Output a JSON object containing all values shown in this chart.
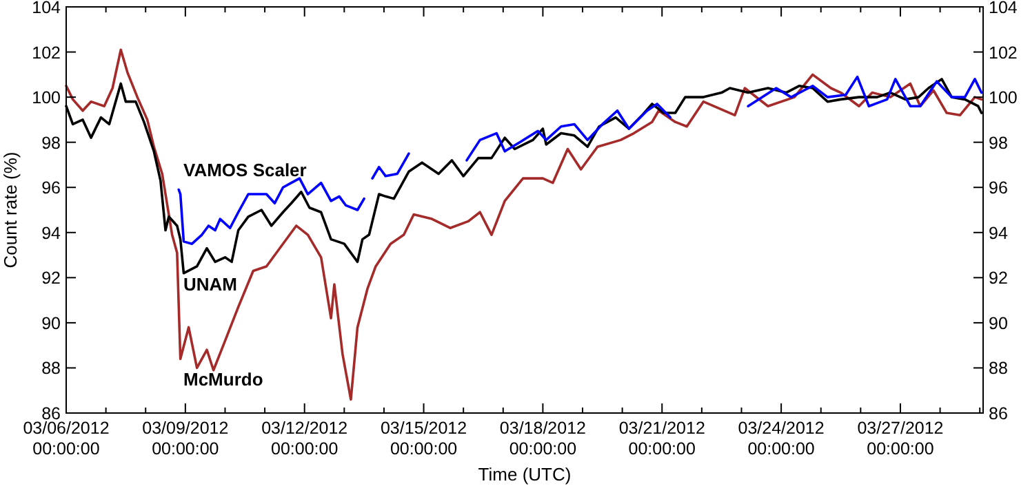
{
  "chart_data": {
    "type": "line",
    "xlabel": "Time (UTC)",
    "ylabel": "Count rate (%)",
    "xlim": [
      "2012-03-06T00:00",
      "2012-03-29T02:00"
    ],
    "xticks": [
      {
        "value": "2012-03-06",
        "label": "03/06/2012 00:00:00"
      },
      {
        "value": "2012-03-07",
        "label": null
      },
      {
        "value": "2012-03-08",
        "label": null
      },
      {
        "value": "2012-03-09",
        "label": "03/09/2012 00:00:00"
      },
      {
        "value": "2012-03-10",
        "label": null
      },
      {
        "value": "2012-03-11",
        "label": null
      },
      {
        "value": "2012-03-12",
        "label": "03/12/2012 00:00:00"
      },
      {
        "value": "2012-03-13",
        "label": null
      },
      {
        "value": "2012-03-14",
        "label": null
      },
      {
        "value": "2012-03-15",
        "label": "03/15/2012 00:00:00"
      },
      {
        "value": "2012-03-16",
        "label": null
      },
      {
        "value": "2012-03-17",
        "label": null
      },
      {
        "value": "2012-03-18",
        "label": "03/18/2012 00:00:00"
      },
      {
        "value": "2012-03-19",
        "label": null
      },
      {
        "value": "2012-03-20",
        "label": null
      },
      {
        "value": "2012-03-21",
        "label": "03/21/2012 00:00:00"
      },
      {
        "value": "2012-03-22",
        "label": null
      },
      {
        "value": "2012-03-23",
        "label": null
      },
      {
        "value": "2012-03-24",
        "label": "03/24/2012 00:00:00"
      },
      {
        "value": "2012-03-25",
        "label": null
      },
      {
        "value": "2012-03-26",
        "label": null
      },
      {
        "value": "2012-03-27",
        "label": "03/27/2012 00:00:00"
      },
      {
        "value": "2012-03-28",
        "label": null
      },
      {
        "value": "2012-03-29",
        "label": null
      }
    ],
    "ylim": [
      86,
      104
    ],
    "yticks": [
      86,
      88,
      90,
      92,
      94,
      96,
      98,
      100,
      102,
      104
    ],
    "y2lim": [
      86,
      104
    ],
    "y2ticks": [
      86,
      88,
      90,
      92,
      94,
      96,
      98,
      100,
      102,
      104
    ],
    "series": [
      {
        "name": "McMurdo",
        "color": "#a52a2a",
        "x": [
          "2012-03-06T00:00",
          "2012-03-06T04:00",
          "2012-03-06T10:00",
          "2012-03-06T15:00",
          "2012-03-06T23:00",
          "2012-03-07T04:00",
          "2012-03-07T09:00",
          "2012-03-07T13:00",
          "2012-03-07T19:00",
          "2012-03-08T01:00",
          "2012-03-08T05:00",
          "2012-03-08T10:00",
          "2012-03-08T16:00",
          "2012-03-08T19:00",
          "2012-03-08T21:00",
          "2012-03-09T02:00",
          "2012-03-09T07:00",
          "2012-03-09T13:00",
          "2012-03-09T17:00",
          "2012-03-10T00:00",
          "2012-03-10T08:00",
          "2012-03-10T17:00",
          "2012-03-11T01:00",
          "2012-03-11T09:00",
          "2012-03-11T19:00",
          "2012-03-12T02:00",
          "2012-03-12T10:00",
          "2012-03-12T16:00",
          "2012-03-12T18:00",
          "2012-03-12T23:00",
          "2012-03-13T04:00",
          "2012-03-13T08:00",
          "2012-03-13T14:00",
          "2012-03-13T19:00",
          "2012-03-14T04:00",
          "2012-03-14T12:00",
          "2012-03-14T18:00",
          "2012-03-15T05:00",
          "2012-03-15T16:00",
          "2012-03-16T03:00",
          "2012-03-16T10:00",
          "2012-03-16T17:00",
          "2012-03-17T01:00",
          "2012-03-17T12:00",
          "2012-03-18T00:00",
          "2012-03-18T06:00",
          "2012-03-18T15:00",
          "2012-03-18T23:00",
          "2012-03-19T09:00",
          "2012-03-19T23:00",
          "2012-03-20T07:00",
          "2012-03-20T18:00",
          "2012-03-20T22:00",
          "2012-03-21T08:00",
          "2012-03-21T15:00",
          "2012-03-22T01:00",
          "2012-03-22T20:00",
          "2012-03-23T02:00",
          "2012-03-23T16:00",
          "2012-03-24T08:00",
          "2012-03-24T19:00",
          "2012-03-25T06:00",
          "2012-03-25T12:00",
          "2012-03-25T23:00",
          "2012-03-26T07:00",
          "2012-03-26T18:00",
          "2012-03-27T06:00",
          "2012-03-27T12:00",
          "2012-03-27T20:00",
          "2012-03-28T04:00",
          "2012-03-28T12:00",
          "2012-03-28T21:00",
          "2012-03-29T01:00"
        ],
        "values": [
          100.5,
          99.9,
          99.4,
          99.8,
          99.6,
          100.4,
          102.1,
          101.1,
          100.0,
          99.0,
          97.8,
          96.6,
          93.9,
          93.1,
          88.4,
          89.8,
          88.0,
          88.8,
          87.9,
          89.2,
          90.7,
          92.3,
          92.5,
          93.3,
          94.3,
          93.9,
          92.9,
          90.2,
          91.7,
          88.6,
          86.6,
          89.8,
          91.5,
          92.5,
          93.5,
          93.9,
          94.8,
          94.6,
          94.2,
          94.5,
          94.9,
          93.9,
          95.4,
          96.4,
          96.4,
          96.2,
          97.7,
          96.8,
          97.8,
          98.1,
          98.4,
          98.9,
          99.4,
          98.9,
          98.7,
          99.8,
          99.2,
          100.4,
          99.6,
          100.0,
          101.0,
          100.4,
          100.2,
          99.6,
          100.2,
          100.0,
          100.6,
          99.6,
          100.3,
          99.3,
          99.2,
          100.0,
          99.9
        ]
      },
      {
        "name": "UNAM",
        "color": "#000000",
        "x": [
          "2012-03-06T00:00",
          "2012-03-06T04:00",
          "2012-03-06T10:00",
          "2012-03-06T15:00",
          "2012-03-06T21:00",
          "2012-03-07T02:00",
          "2012-03-07T09:00",
          "2012-03-07T12:00",
          "2012-03-07T18:00",
          "2012-03-07T23:00",
          "2012-03-08T05:00",
          "2012-03-08T09:00",
          "2012-03-08T12:00",
          "2012-03-08T14:00",
          "2012-03-08T19:00",
          "2012-03-08T21:00",
          "2012-03-08T23:00",
          "2012-03-09T07:00",
          "2012-03-09T13:00",
          "2012-03-09T18:00",
          "2012-03-10T00:00",
          "2012-03-10T04:00",
          "2012-03-10T08:00",
          "2012-03-10T14:00",
          "2012-03-10T22:00",
          "2012-03-11T04:00",
          "2012-03-11T11:00",
          "2012-03-11T16:00",
          "2012-03-11T22:00",
          "2012-03-12T03:00",
          "2012-03-12T10:00",
          "2012-03-12T16:00",
          "2012-03-13T00:00",
          "2012-03-13T08:00",
          "2012-03-13T11:00",
          "2012-03-13T15:00",
          "2012-03-13T21:00",
          "2012-03-14T01:00",
          "2012-03-14T06:00",
          "2012-03-14T15:00",
          "2012-03-14T23:00",
          "2012-03-15T09:00",
          "2012-03-15T17:00",
          "2012-03-16T00:00",
          "2012-03-16T09:00",
          "2012-03-16T17:00",
          "2012-03-17T01:00",
          "2012-03-17T07:00",
          "2012-03-17T18:00",
          "2012-03-18T00:00",
          "2012-03-18T02:00",
          "2012-03-18T11:00",
          "2012-03-18T19:00",
          "2012-03-19T03:00",
          "2012-03-19T10:00",
          "2012-03-19T20:00",
          "2012-03-20T04:00",
          "2012-03-20T12:00",
          "2012-03-20T18:00",
          "2012-03-21T01:00",
          "2012-03-21T08:00",
          "2012-03-21T14:00",
          "2012-03-22T01:00",
          "2012-03-22T12:00",
          "2012-03-22T17:00",
          "2012-03-23T04:00",
          "2012-03-23T16:00",
          "2012-03-24T03:00",
          "2012-03-24T11:00",
          "2012-03-24T19:00",
          "2012-03-25T04:00",
          "2012-03-25T12:00",
          "2012-03-25T23:00",
          "2012-03-26T10:00",
          "2012-03-26T18:00",
          "2012-03-27T03:00",
          "2012-03-27T11:00",
          "2012-03-27T17:00",
          "2012-03-28T01:00",
          "2012-03-28T07:00",
          "2012-03-28T15:00",
          "2012-03-28T23:00",
          "2012-03-29T01:00"
        ],
        "values": [
          99.6,
          98.8,
          99.0,
          98.2,
          99.1,
          98.8,
          100.6,
          99.8,
          99.8,
          98.9,
          97.6,
          96.3,
          94.1,
          94.7,
          94.3,
          93.7,
          92.2,
          92.5,
          93.3,
          92.7,
          92.9,
          92.7,
          94.1,
          94.7,
          95.0,
          94.3,
          94.9,
          95.3,
          95.8,
          95.1,
          94.9,
          93.7,
          93.5,
          92.7,
          93.7,
          93.9,
          95.7,
          95.6,
          95.5,
          96.7,
          97.1,
          96.6,
          97.2,
          96.5,
          97.3,
          97.3,
          98.2,
          97.7,
          98.1,
          98.6,
          97.9,
          98.4,
          98.3,
          97.8,
          98.7,
          99.1,
          98.6,
          99.2,
          99.7,
          99.3,
          99.3,
          100.0,
          100.0,
          100.2,
          100.4,
          100.2,
          100.4,
          100.2,
          100.5,
          100.4,
          99.8,
          99.9,
          100.0,
          100.0,
          100.2,
          99.9,
          100.0,
          100.4,
          100.8,
          100.0,
          99.9,
          99.6,
          99.3
        ]
      },
      {
        "name": "VAMOS Scaler",
        "color": "#0000ff",
        "x": [
          "2012-03-08T20:00",
          "2012-03-08T21:00",
          "2012-03-08T23:00",
          "2012-03-09T04:00",
          "2012-03-09T10:00",
          "2012-03-09T14:00",
          "2012-03-09T18:00",
          "2012-03-09T21:00",
          "2012-03-10T03:00",
          "2012-03-10T08:00",
          "2012-03-10T14:00",
          "2012-03-10T19:00",
          "2012-03-11T01:00",
          "2012-03-11T06:00",
          "2012-03-11T11:00",
          "2012-03-11T16:00",
          "2012-03-11T21:00",
          "2012-03-12T02:00",
          "2012-03-12T10:00",
          "2012-03-12T16:00",
          "2012-03-12T21:00",
          "2012-03-13T01:00",
          "2012-03-13T08:00",
          "2012-03-13T12:00",
          "2012-03-13T14:00",
          "2012-03-13T17:00",
          "2012-03-13T21:00",
          "2012-03-14T01:00",
          "2012-03-14T08:00",
          "2012-03-14T15:00",
          "2012-03-15T00:00",
          "2012-03-16T02:00",
          "2012-03-16T10:00",
          "2012-03-16T20:00",
          "2012-03-17T01:00",
          "2012-03-17T10:00",
          "2012-03-17T21:00",
          "2012-03-18T02:00",
          "2012-03-18T11:00",
          "2012-03-18T19:00",
          "2012-03-19T03:00",
          "2012-03-19T12:00",
          "2012-03-19T21:00",
          "2012-03-20T04:00",
          "2012-03-20T15:00",
          "2012-03-20T21:00",
          "2012-03-21T05:00",
          "2012-03-22T00:00",
          "2012-03-23T04:00",
          "2012-03-23T21:00",
          "2012-03-24T06:00",
          "2012-03-24T19:00",
          "2012-03-25T04:00",
          "2012-03-25T15:00",
          "2012-03-25T22:00",
          "2012-03-26T05:00",
          "2012-03-26T16:00",
          "2012-03-26T21:00",
          "2012-03-27T06:00",
          "2012-03-27T12:00",
          "2012-03-27T22:00",
          "2012-03-28T07:00",
          "2012-03-28T15:00",
          "2012-03-28T21:00",
          "2012-03-29T01:00"
        ],
        "values": [
          95.9,
          95.7,
          93.6,
          93.5,
          93.9,
          94.3,
          94.1,
          94.6,
          94.2,
          94.9,
          95.7,
          95.7,
          95.7,
          95.3,
          96.0,
          96.2,
          96.4,
          95.7,
          96.2,
          95.4,
          95.6,
          95.2,
          95.0,
          95.5,
          null,
          96.4,
          96.9,
          96.5,
          96.6,
          97.5,
          null,
          97.2,
          98.1,
          98.4,
          97.6,
          98.0,
          98.5,
          98.1,
          98.7,
          98.8,
          98.1,
          98.8,
          99.4,
          98.6,
          99.4,
          99.7,
          99.1,
          null,
          99.6,
          100.4,
          100.0,
          100.5,
          100.0,
          100.1,
          100.9,
          99.6,
          99.9,
          100.8,
          99.6,
          99.6,
          100.7,
          100.0,
          100.0,
          100.8,
          100.2
        ]
      }
    ]
  }
}
